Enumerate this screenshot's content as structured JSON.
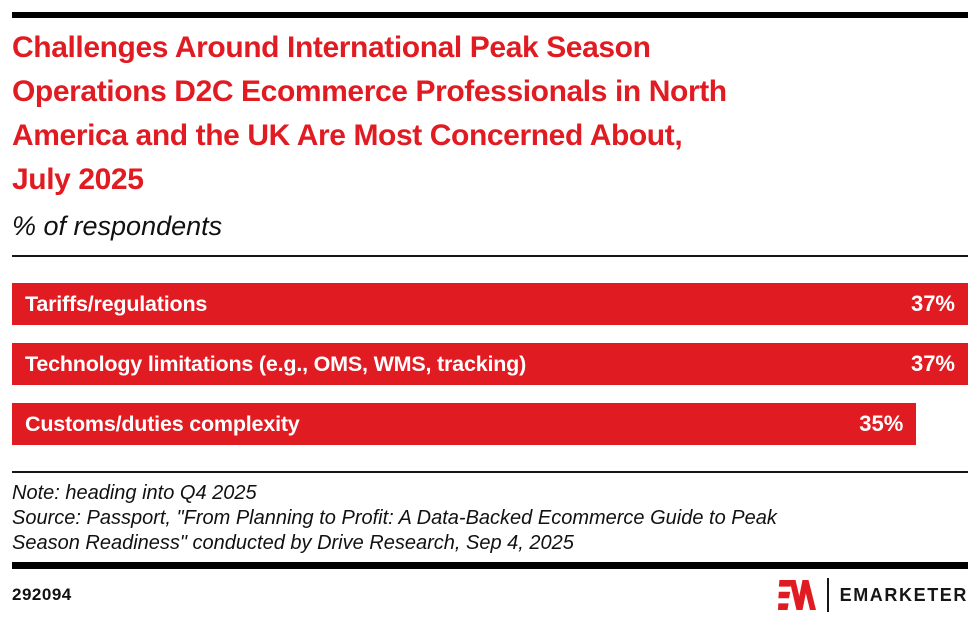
{
  "header": {
    "title_lines": [
      "Challenges Around International Peak Season",
      "Operations D2C Ecommerce Professionals in North",
      "America and the UK Are Most Concerned About,",
      "July 2025"
    ],
    "subtitle": "% of respondents"
  },
  "chart_data": {
    "type": "bar",
    "orientation": "horizontal",
    "title": "Challenges Around International Peak Season Operations D2C Ecommerce Professionals in North America and the UK Are Most Concerned About, July 2025",
    "ylabel": "% of respondents",
    "categories": [
      "Tariffs/regulations",
      "Technology limitations (e.g., OMS, WMS, tracking)",
      "Customs/duties complexity"
    ],
    "values": [
      37,
      37,
      35
    ],
    "value_suffix": "%",
    "xlim": [
      0,
      37
    ],
    "grid": "off",
    "legend": "none",
    "bar_color": "#e11b22",
    "bar_label_color": "#ffffff"
  },
  "footer": {
    "note": "Note: heading into Q4 2025",
    "source_lines": [
      "Source: Passport, \"From Planning to Profit: A Data-Backed Ecommerce Guide to Peak",
      "Season Readiness\" conducted by Drive Research, Sep 4, 2025"
    ],
    "chart_id": "292094",
    "brand_name": "EMARKETER"
  },
  "colors": {
    "accent_red": "#e11b22",
    "rule_black": "#000000",
    "text_black": "#111111"
  }
}
